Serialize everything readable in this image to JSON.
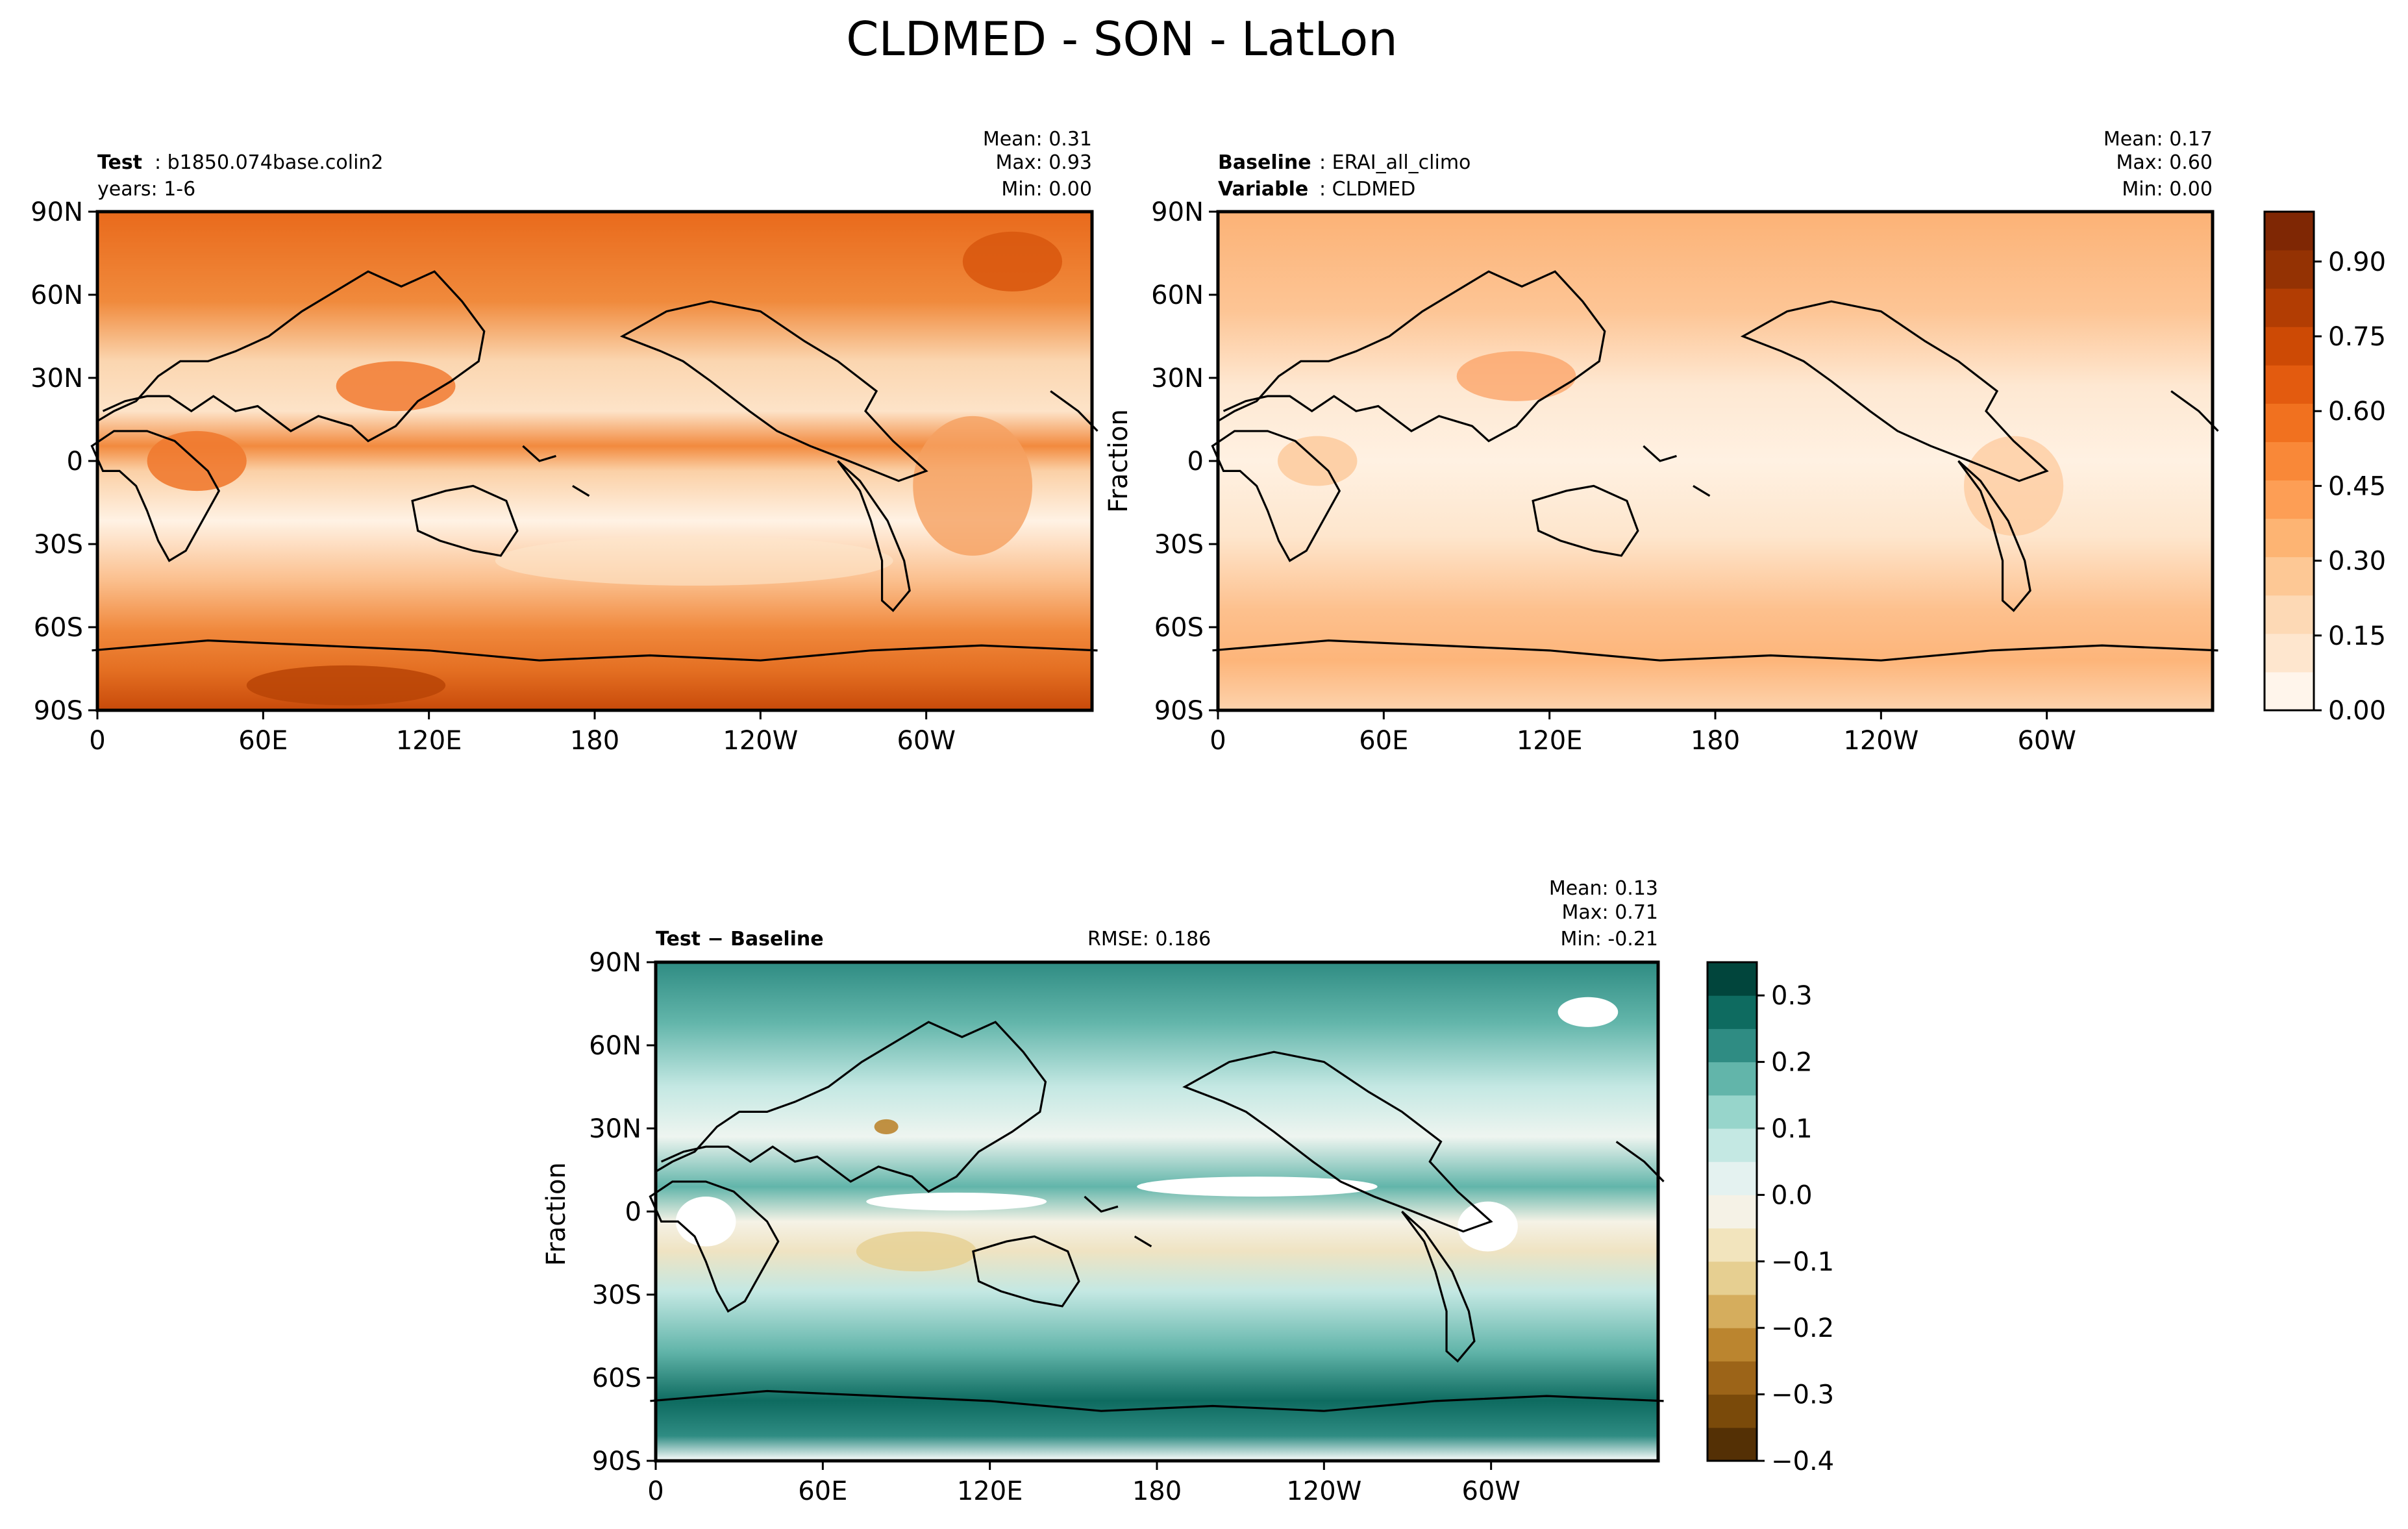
{
  "figure_title": "CLDMED - SON - LatLon",
  "panels": {
    "test": {
      "label_bold": "Test",
      "label_value": ": b1850.074base.colin2",
      "line2": "years: 1-6",
      "stats": {
        "mean": "Mean:  0.31",
        "max": "Max:  0.93",
        "min": "Min:  0.00"
      },
      "ylabel": ""
    },
    "baseline": {
      "label_bold": "Baseline",
      "label_value": ": ERAI_all_climo",
      "line2_bold": "Variable",
      "line2_value": ": CLDMED",
      "stats": {
        "mean": "Mean:  0.17",
        "max": "Max:  0.60",
        "min": "Min:  0.00"
      },
      "ylabel": "Fraction"
    },
    "diff": {
      "label_bold": "Test − Baseline",
      "rmse": "RMSE: 0.186",
      "stats": {
        "mean": "Mean:  0.13",
        "max": "Max:  0.71",
        "min": "Min: -0.21"
      },
      "ylabel": "Fraction"
    }
  },
  "axes": {
    "x_ticks": [
      "0",
      "60E",
      "120E",
      "180",
      "120W",
      "60W"
    ],
    "y_ticks": [
      "90N",
      "60N",
      "30N",
      "0",
      "30S",
      "60S",
      "90S"
    ]
  },
  "colorbars": {
    "top": {
      "ticks": [
        "0.00",
        "0.15",
        "0.30",
        "0.45",
        "0.60",
        "0.75",
        "0.90"
      ],
      "colors": [
        "#fff5eb",
        "#fee6ce",
        "#fdd9b5",
        "#fdc895",
        "#fdb473",
        "#fd9e55",
        "#f98838",
        "#f1711f",
        "#e35b0f",
        "#cd4a05",
        "#b23d03",
        "#943203",
        "#7f2704"
      ]
    },
    "bottom": {
      "ticks": [
        "0.3",
        "0.2",
        "0.1",
        "0.0",
        "−0.1",
        "−0.2",
        "−0.3",
        "−0.4"
      ],
      "colors": [
        "#543005",
        "#7a4a0a",
        "#9c6418",
        "#bb852f",
        "#d5ad5d",
        "#e6cf91",
        "#f2e4bd",
        "#f5f2e6",
        "#e4f2f0",
        "#c4e8e3",
        "#97d5cb",
        "#62b5aa",
        "#2f8c83",
        "#0e6b60",
        "#01453c"
      ]
    }
  },
  "chart_data": [
    {
      "type": "heatmap",
      "title": "Test: b1850.074base.colin2 (years: 1-6)",
      "variable": "CLDMED",
      "xlabel": "",
      "ylabel": "",
      "x_ticks": [
        "0",
        "60E",
        "120E",
        "180",
        "120W",
        "60W"
      ],
      "y_ticks": [
        "90N",
        "60N",
        "30N",
        "0",
        "30S",
        "60S",
        "90S"
      ],
      "lon_range": [
        0,
        360
      ],
      "lat_range": [
        -90,
        90
      ],
      "color_range": [
        0,
        1.0
      ],
      "mean": 0.31,
      "max": 0.93,
      "min": 0.0
    },
    {
      "type": "heatmap",
      "title": "Baseline: ERAI_all_climo",
      "variable": "CLDMED",
      "xlabel": "",
      "ylabel": "Fraction",
      "lon_range": [
        0,
        360
      ],
      "lat_range": [
        -90,
        90
      ],
      "color_range": [
        0,
        1.0
      ],
      "mean": 0.17,
      "max": 0.6,
      "min": 0.0
    },
    {
      "type": "heatmap",
      "title": "Test − Baseline",
      "variable": "CLDMED",
      "xlabel": "",
      "ylabel": "Fraction",
      "lon_range": [
        0,
        360
      ],
      "lat_range": [
        -90,
        90
      ],
      "color_range": [
        -0.4,
        0.35
      ],
      "mean": 0.13,
      "max": 0.71,
      "min": -0.21,
      "rmse": 0.186
    }
  ]
}
